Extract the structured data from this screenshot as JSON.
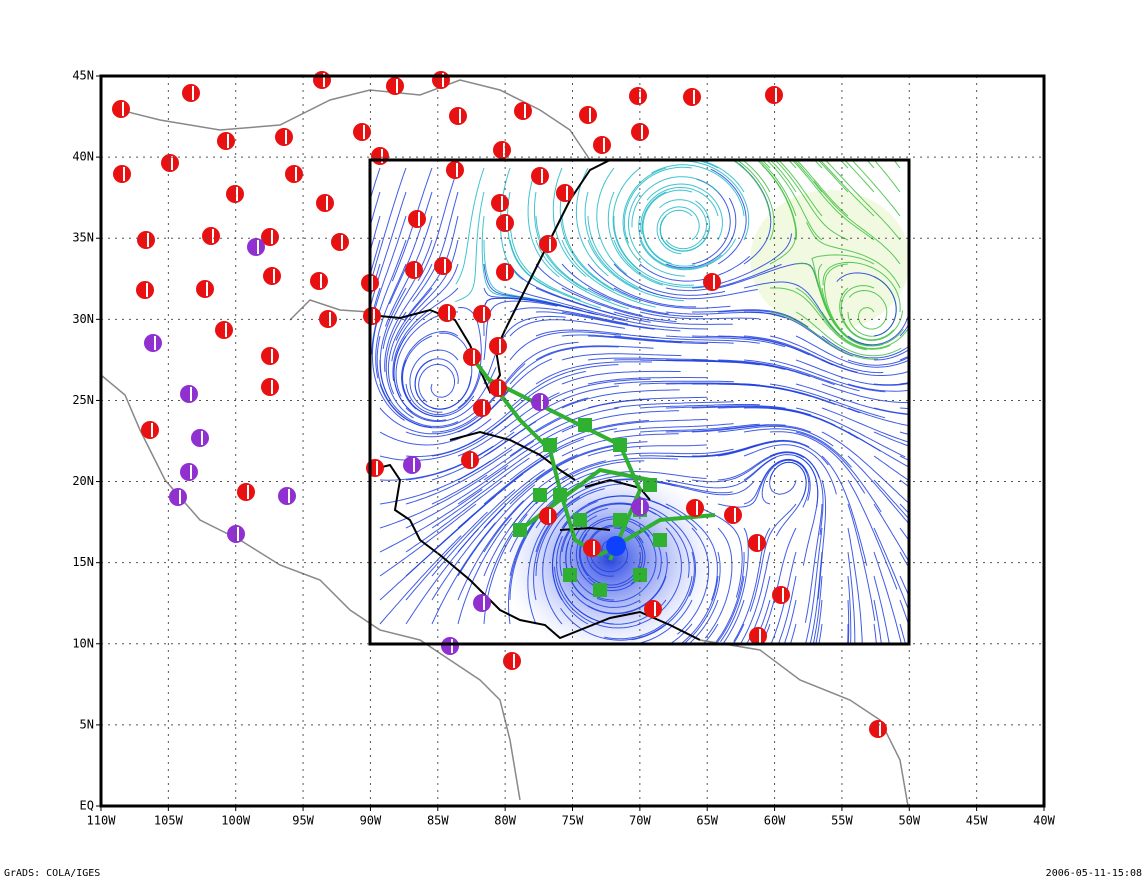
{
  "map": {
    "xlim": [
      -110,
      -40
    ],
    "ylim": [
      0,
      45
    ],
    "xticks": [
      {
        "value": -110,
        "label": "110W"
      },
      {
        "value": -105,
        "label": "105W"
      },
      {
        "value": -100,
        "label": "100W"
      },
      {
        "value": -95,
        "label": "95W"
      },
      {
        "value": -90,
        "label": "90W"
      },
      {
        "value": -85,
        "label": "85W"
      },
      {
        "value": -80,
        "label": "80W"
      },
      {
        "value": -75,
        "label": "75W"
      },
      {
        "value": -70,
        "label": "70W"
      },
      {
        "value": -65,
        "label": "65W"
      },
      {
        "value": -60,
        "label": "60W"
      },
      {
        "value": -55,
        "label": "55W"
      },
      {
        "value": -50,
        "label": "50W"
      },
      {
        "value": -45,
        "label": "45W"
      },
      {
        "value": -40,
        "label": "40W"
      }
    ],
    "yticks": [
      {
        "value": 0,
        "label": "EQ"
      },
      {
        "value": 5,
        "label": "5N"
      },
      {
        "value": 10,
        "label": "10N"
      },
      {
        "value": 15,
        "label": "15N"
      },
      {
        "value": 20,
        "label": "20N"
      },
      {
        "value": 25,
        "label": "25N"
      },
      {
        "value": 30,
        "label": "30N"
      },
      {
        "value": 35,
        "label": "35N"
      },
      {
        "value": 40,
        "label": "40N"
      },
      {
        "value": 45,
        "label": "45N"
      }
    ],
    "grid": true
  },
  "footer": {
    "left": "GrADS: COLA/IGES",
    "right": "2006-05-11-15:08"
  }
}
